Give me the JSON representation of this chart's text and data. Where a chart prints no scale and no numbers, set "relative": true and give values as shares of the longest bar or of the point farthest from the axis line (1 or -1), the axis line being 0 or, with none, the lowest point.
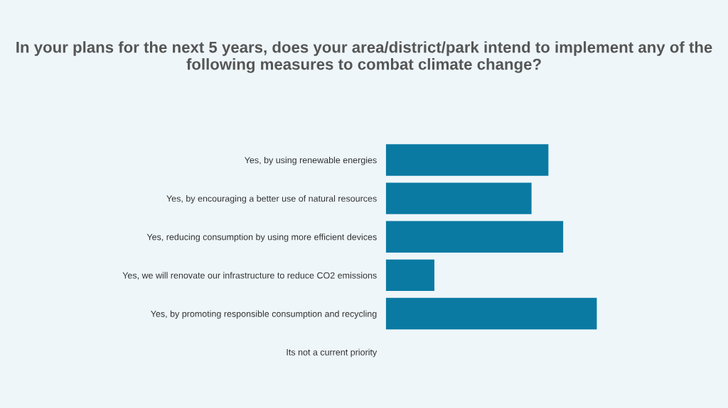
{
  "chart_data": {
    "type": "bar",
    "orientation": "horizontal",
    "relative": true,
    "title": "In your plans for the next 5 years, does your area/district/park intend to implement any of the following measures to combat climate change?",
    "categories": [
      "Yes, by using renewable energies",
      "Yes, by encouraging a better use of natural resources",
      "Yes, reducing consumption by using more efficient devices",
      "Yes, we will renovate our infrastructure to reduce CO2 emissions",
      "Yes, by promoting responsible consumption and recycling",
      "Its not a current priority"
    ],
    "values": [
      0.77,
      0.69,
      0.84,
      0.23,
      1.0,
      0
    ],
    "color": "#0a7aa3",
    "grid": false,
    "legend": false
  }
}
